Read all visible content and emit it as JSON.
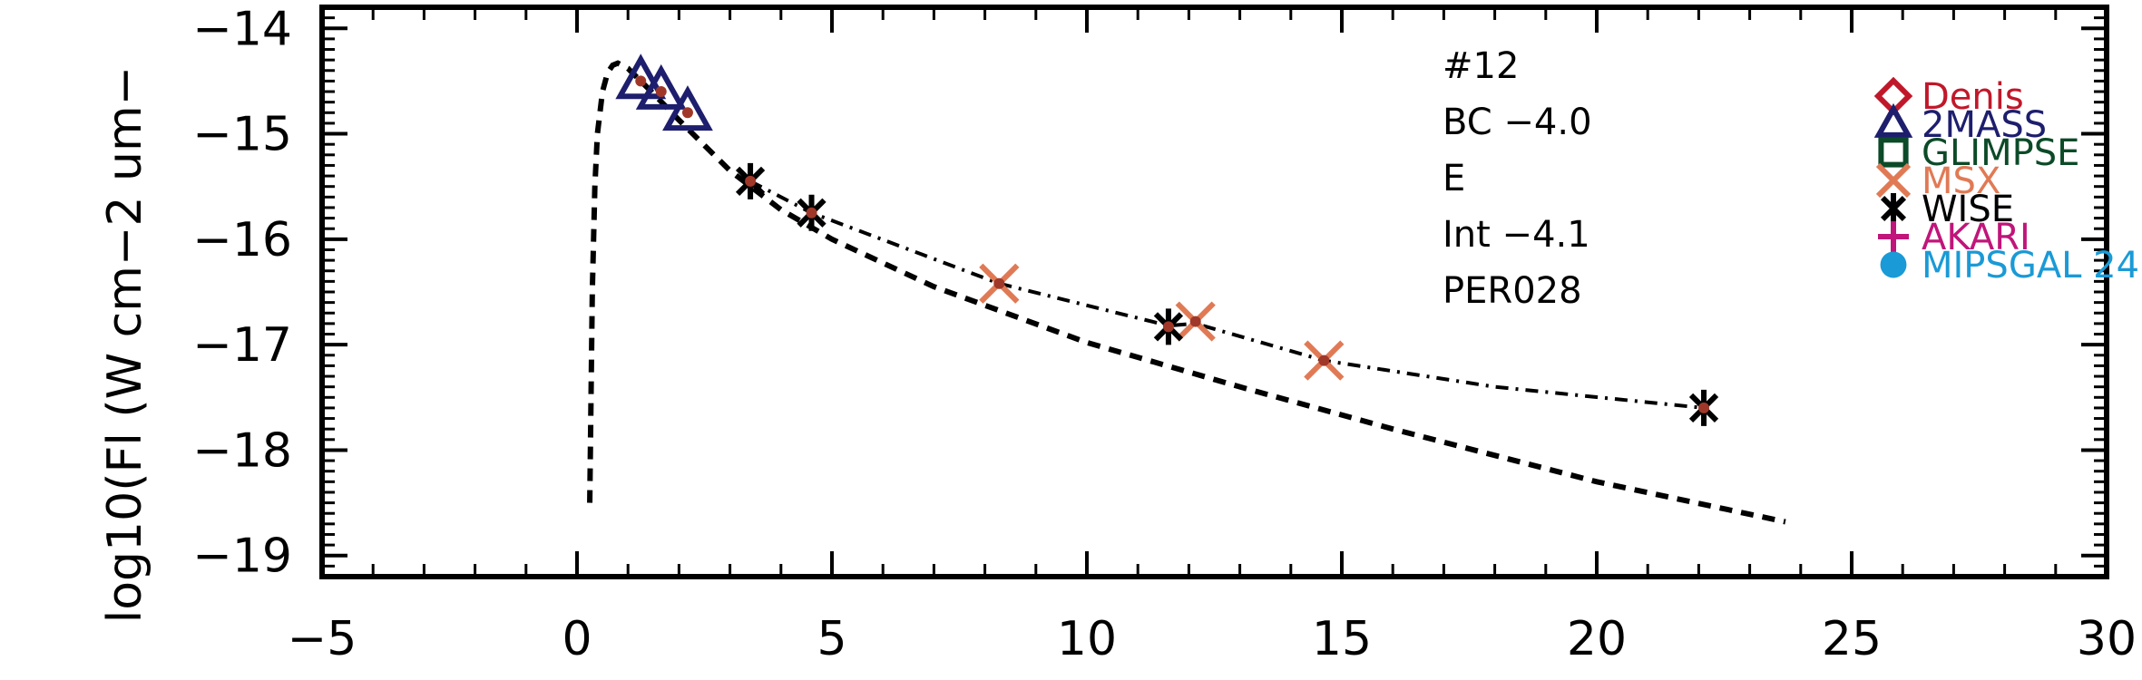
{
  "chart_data": {
    "type": "scatter",
    "title": "",
    "xlabel": "",
    "ylabel": "log10(Fl (W cm−2 um−",
    "xlim": [
      -5,
      30
    ],
    "ylim": [
      -19.2,
      -13.8
    ],
    "x_ticks": [
      -5,
      0,
      5,
      10,
      15,
      20,
      25,
      30
    ],
    "x_tick_labels": [
      "−5",
      "0",
      "5",
      "10",
      "15",
      "20",
      "25",
      "30"
    ],
    "y_ticks": [
      -14,
      -15,
      -16,
      -17,
      -18,
      -19
    ],
    "y_tick_labels": [
      "−14",
      "−15",
      "−16",
      "−17",
      "−18",
      "−19"
    ],
    "grid": false,
    "legend_position": "right",
    "annotations": [
      "#12",
      "BC −4.0",
      "E",
      "Int −4.1",
      "PER028"
    ],
    "series": [
      {
        "name": "Denis",
        "marker": "diamond",
        "color": "#c0182a",
        "x": [],
        "y": []
      },
      {
        "name": "2MASS",
        "marker": "triangle",
        "color": "#1e1e6e",
        "x": [
          1.25,
          1.65,
          2.17
        ],
        "y": [
          -14.5,
          -14.6,
          -14.8
        ]
      },
      {
        "name": "GLIMPSE",
        "marker": "square",
        "color": "#0c4a28",
        "x": [],
        "y": []
      },
      {
        "name": "MSX",
        "marker": "x",
        "color": "#e07a55",
        "x": [
          8.28,
          12.13,
          14.65
        ],
        "y": [
          -16.42,
          -16.78,
          -17.15
        ]
      },
      {
        "name": "WISE",
        "marker": "asterisk",
        "color": "#000000",
        "x": [
          3.4,
          4.6,
          11.6,
          22.1
        ],
        "y": [
          -15.45,
          -15.75,
          -16.83,
          -17.6
        ]
      },
      {
        "name": "AKARI",
        "marker": "plus",
        "color": "#c0157a",
        "x": [],
        "y": []
      },
      {
        "name": "MIPSGAL 24",
        "marker": "circle",
        "color": "#1a9ad6",
        "x": [],
        "y": []
      }
    ],
    "red_points": {
      "color": "#a0382a",
      "x": [
        1.25,
        1.65,
        2.17,
        3.4,
        4.6,
        8.28,
        11.6,
        12.13,
        14.65,
        22.1
      ],
      "y": [
        -14.5,
        -14.6,
        -14.8,
        -15.45,
        -15.75,
        -16.42,
        -16.83,
        -16.78,
        -17.15,
        -17.6
      ]
    },
    "model_dashed": {
      "style": "dashed",
      "x": [
        0.25,
        0.3,
        0.35,
        0.4,
        0.5,
        0.6,
        0.7,
        0.8,
        1.0,
        1.5,
        2.0,
        3.0,
        4.0,
        5.0,
        7.0,
        10.0,
        13.0,
        16.0,
        20.0,
        23.7
      ],
      "y": [
        -18.5,
        -16.5,
        -15.5,
        -15.0,
        -14.6,
        -14.42,
        -14.35,
        -14.33,
        -14.38,
        -14.62,
        -14.87,
        -15.35,
        -15.72,
        -16.0,
        -16.45,
        -16.98,
        -17.4,
        -17.8,
        -18.3,
        -18.68
      ]
    },
    "model_dashdot": {
      "style": "dashdot",
      "x": [
        3.4,
        4.6,
        8.28,
        11.6,
        12.13,
        14.65,
        18.0,
        22.1
      ],
      "y": [
        -15.45,
        -15.75,
        -16.42,
        -16.82,
        -16.8,
        -17.15,
        -17.4,
        -17.6
      ]
    }
  }
}
